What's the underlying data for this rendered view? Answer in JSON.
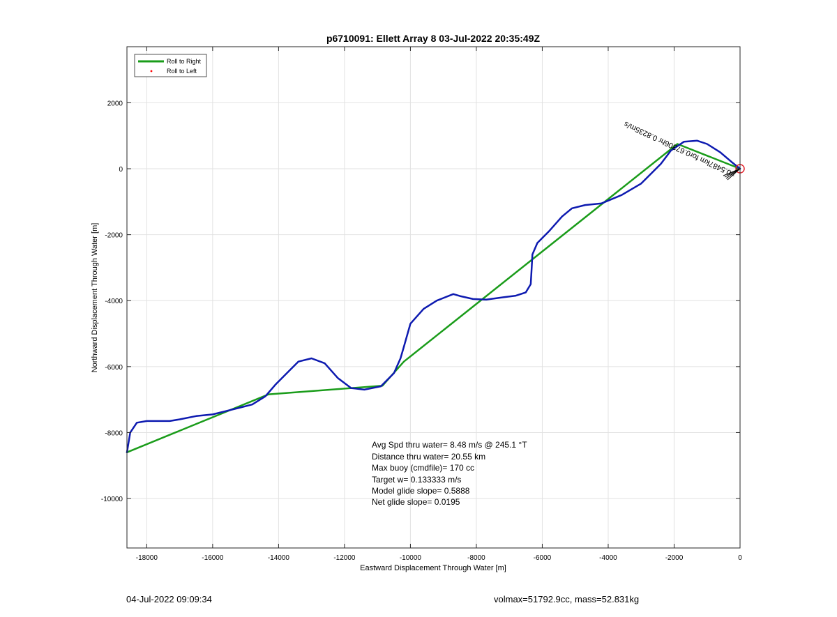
{
  "chart_data": {
    "type": "line",
    "title": "p6710091: Ellett Array 8 03-Jul-2022 20:35:49Z",
    "xlabel": "Eastward Displacement Through Water [m]",
    "ylabel": "Northward Displacement Through Water [m]",
    "xlim": [
      -18600,
      0
    ],
    "ylim": [
      -11500,
      3700
    ],
    "xticks": [
      -18000,
      -16000,
      -14000,
      -12000,
      -10000,
      -8000,
      -6000,
      -4000,
      -2000,
      0
    ],
    "yticks": [
      -10000,
      -8000,
      -6000,
      -4000,
      -2000,
      0,
      2000
    ],
    "grid": true,
    "legend_position": "top-left",
    "legend": [
      {
        "label": "Roll to Right",
        "color": "#1a9c1a",
        "style": "line"
      },
      {
        "label": "Roll to Left",
        "color": "#ff0000",
        "style": "dot"
      }
    ],
    "series": [
      {
        "name": "Roll to Right",
        "color": "#1a9c1a",
        "x": [
          -18600,
          -14300,
          -10850,
          -10200,
          -1900,
          0
        ],
        "y": [
          -8600,
          -6840,
          -6580,
          -5850,
          750,
          0
        ]
      },
      {
        "color": "#0d1ab0",
        "x": [
          0,
          -250,
          -600,
          -1000,
          -1300,
          -1700,
          -2100,
          -2400,
          -3000,
          -3600,
          -4200,
          -4700,
          -5100,
          -5400,
          -5800,
          -6150,
          -6300,
          -6320,
          -6350,
          -6500,
          -6800,
          -7200,
          -7700,
          -8100,
          -8500,
          -8700,
          -9200,
          -9600,
          -10000,
          -10200,
          -10300,
          -10500,
          -10900,
          -11400,
          -11800,
          -12200,
          -12600,
          -13000,
          -13400,
          -13700,
          -14100,
          -14400,
          -14800,
          -15200,
          -15600,
          -16000,
          -16500,
          -17000,
          -17300,
          -17600,
          -18000,
          -18300,
          -18500,
          -18600
        ],
        "y": [
          0,
          200,
          500,
          750,
          850,
          820,
          550,
          150,
          -450,
          -800,
          -1050,
          -1100,
          -1200,
          -1450,
          -1900,
          -2250,
          -2600,
          -3000,
          -3500,
          -3750,
          -3850,
          -3900,
          -3970,
          -3950,
          -3860,
          -3800,
          -4000,
          -4250,
          -4700,
          -5400,
          -5750,
          -6200,
          -6600,
          -6700,
          -6650,
          -6350,
          -5900,
          -5750,
          -5850,
          -6150,
          -6550,
          -6900,
          -7150,
          -7250,
          -7350,
          -7450,
          -7500,
          -7600,
          -7650,
          -7650,
          -7650,
          -7700,
          -8000,
          -8600
        ]
      }
    ],
    "annotation_text": "=0.5487km  for0.67306hr  0.8235m/s"
  },
  "stats_box": {
    "lines": [
      "Avg Spd thru water=  8.48 m/s @ 245.1 °T",
      "Distance thru water= 20.55 km",
      "Max buoy (cmdfile)= 170 cc",
      "Target w= 0.133333 m/s",
      "Model glide slope= 0.5888",
      "Net glide slope= 0.0195"
    ]
  },
  "footer": {
    "date": "04-Jul-2022 09:09:34",
    "info": "volmax=51792.9cc, mass=52.831kg"
  },
  "colors": {
    "grid": "#e2e2e2",
    "axis": "#262626",
    "marker": "#e0202a"
  }
}
